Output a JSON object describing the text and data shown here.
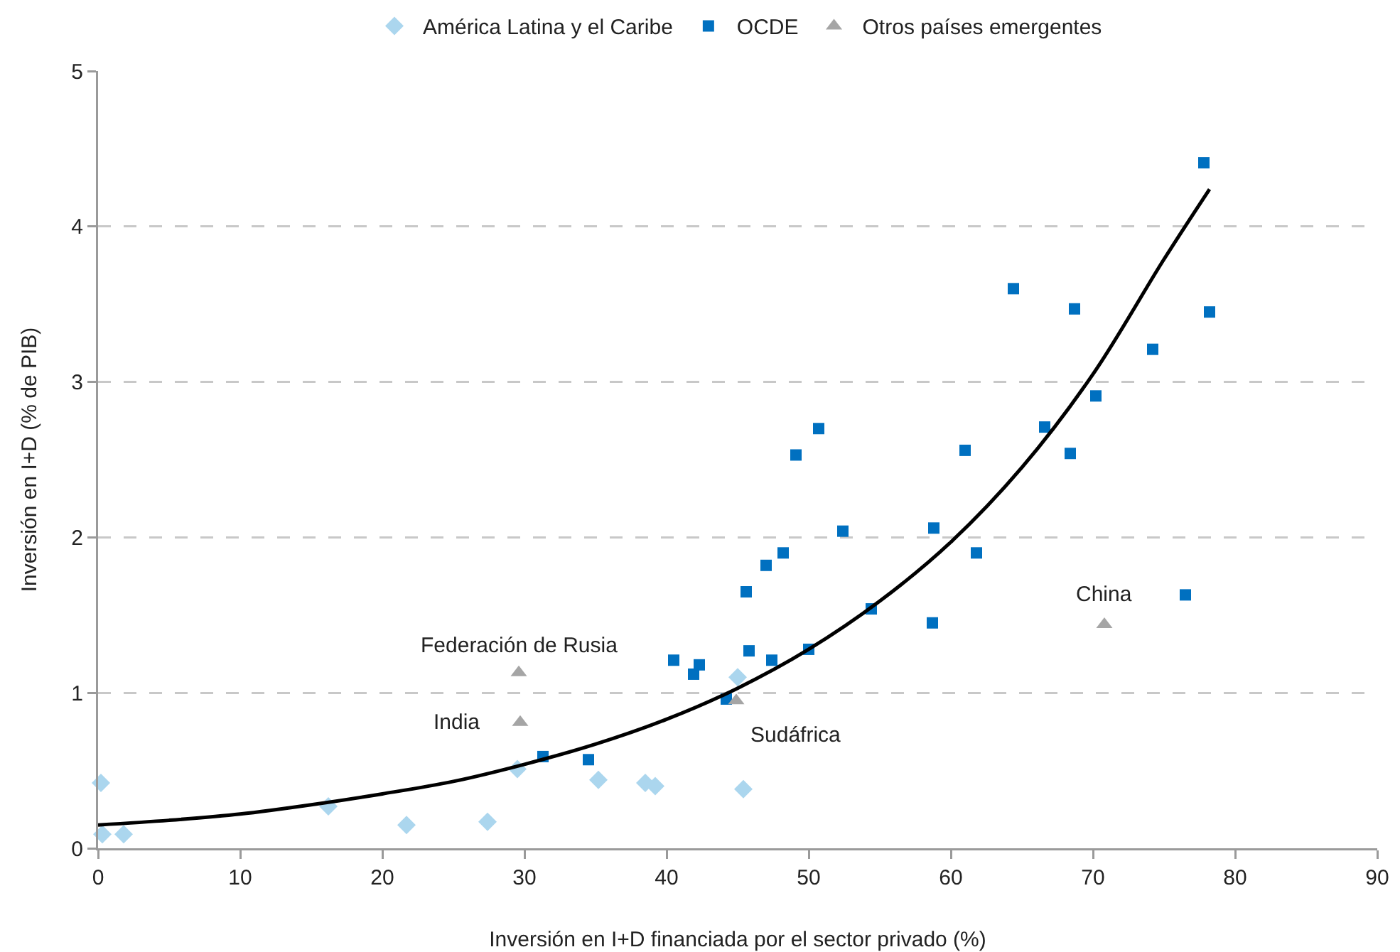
{
  "chart_data": {
    "type": "scatter",
    "xlabel": "Inversión en I+D financiada por el sector privado (%)",
    "ylabel": "Inversión en I+D (% de PIB)",
    "xlim": [
      0,
      90
    ],
    "xticks": [
      0,
      10,
      20,
      30,
      40,
      50,
      60,
      70,
      80,
      90
    ],
    "ylim": [
      0,
      5
    ],
    "yticks": [
      0,
      1,
      2,
      3,
      4,
      5
    ],
    "grid": "y",
    "legend": "top",
    "series": [
      {
        "name": "América Latina y el Caribe",
        "color": "#abd6ee",
        "marker": "diamond",
        "x": [
          0.2,
          0.3,
          1.8,
          16.2,
          21.7,
          27.4,
          29.5,
          35.2,
          38.5,
          39.2,
          45.0,
          45.4
        ],
        "values": [
          0.42,
          0.09,
          0.09,
          0.27,
          0.15,
          0.17,
          0.51,
          0.44,
          0.42,
          0.4,
          1.1,
          0.38
        ]
      },
      {
        "name": "OCDE",
        "color": "#0070c0",
        "marker": "square",
        "x": [
          31.3,
          34.5,
          40.5,
          41.9,
          42.3,
          44.2,
          45.8,
          47.4,
          50.0,
          45.6,
          47.0,
          48.2,
          52.4,
          49.1,
          50.7,
          54.4,
          58.7,
          58.8,
          61.0,
          61.8,
          64.4,
          66.6,
          68.4,
          68.7,
          70.2,
          74.2,
          76.5,
          77.8,
          78.2
        ],
        "values": [
          0.59,
          0.57,
          1.21,
          1.12,
          1.18,
          0.96,
          1.27,
          1.21,
          1.28,
          1.65,
          1.82,
          1.9,
          2.04,
          2.53,
          2.7,
          1.54,
          1.45,
          2.06,
          2.56,
          1.9,
          3.6,
          2.71,
          2.54,
          3.47,
          2.91,
          3.21,
          1.63,
          4.41,
          3.45
        ]
      },
      {
        "name": "Otros países emergentes",
        "color": "#a5a5a5",
        "marker": "triangle",
        "x": [
          29.6,
          29.7,
          44.9,
          70.8
        ],
        "values": [
          1.13,
          0.81,
          0.95,
          1.44
        ]
      },
      {
        "type": "line",
        "color": "#000000",
        "marker": "none",
        "line_style": "solid",
        "x": [
          0,
          5,
          10,
          15,
          20,
          25,
          30,
          35,
          40,
          45,
          50,
          55,
          60,
          65,
          70,
          75,
          78.2
        ],
        "values": [
          0.15,
          0.18,
          0.22,
          0.28,
          0.35,
          0.43,
          0.54,
          0.67,
          0.83,
          1.03,
          1.28,
          1.59,
          1.97,
          2.45,
          3.05,
          3.79,
          4.24
        ]
      }
    ],
    "annotations": [
      {
        "text": "Federación de Rusia",
        "x": 29.6,
        "y": 1.13
      },
      {
        "text": "India",
        "x": 29.7,
        "y": 0.81
      },
      {
        "text": "Sudáfrica",
        "x": 44.9,
        "y": 0.95
      },
      {
        "text": "China",
        "x": 70.8,
        "y": 1.44
      }
    ]
  }
}
